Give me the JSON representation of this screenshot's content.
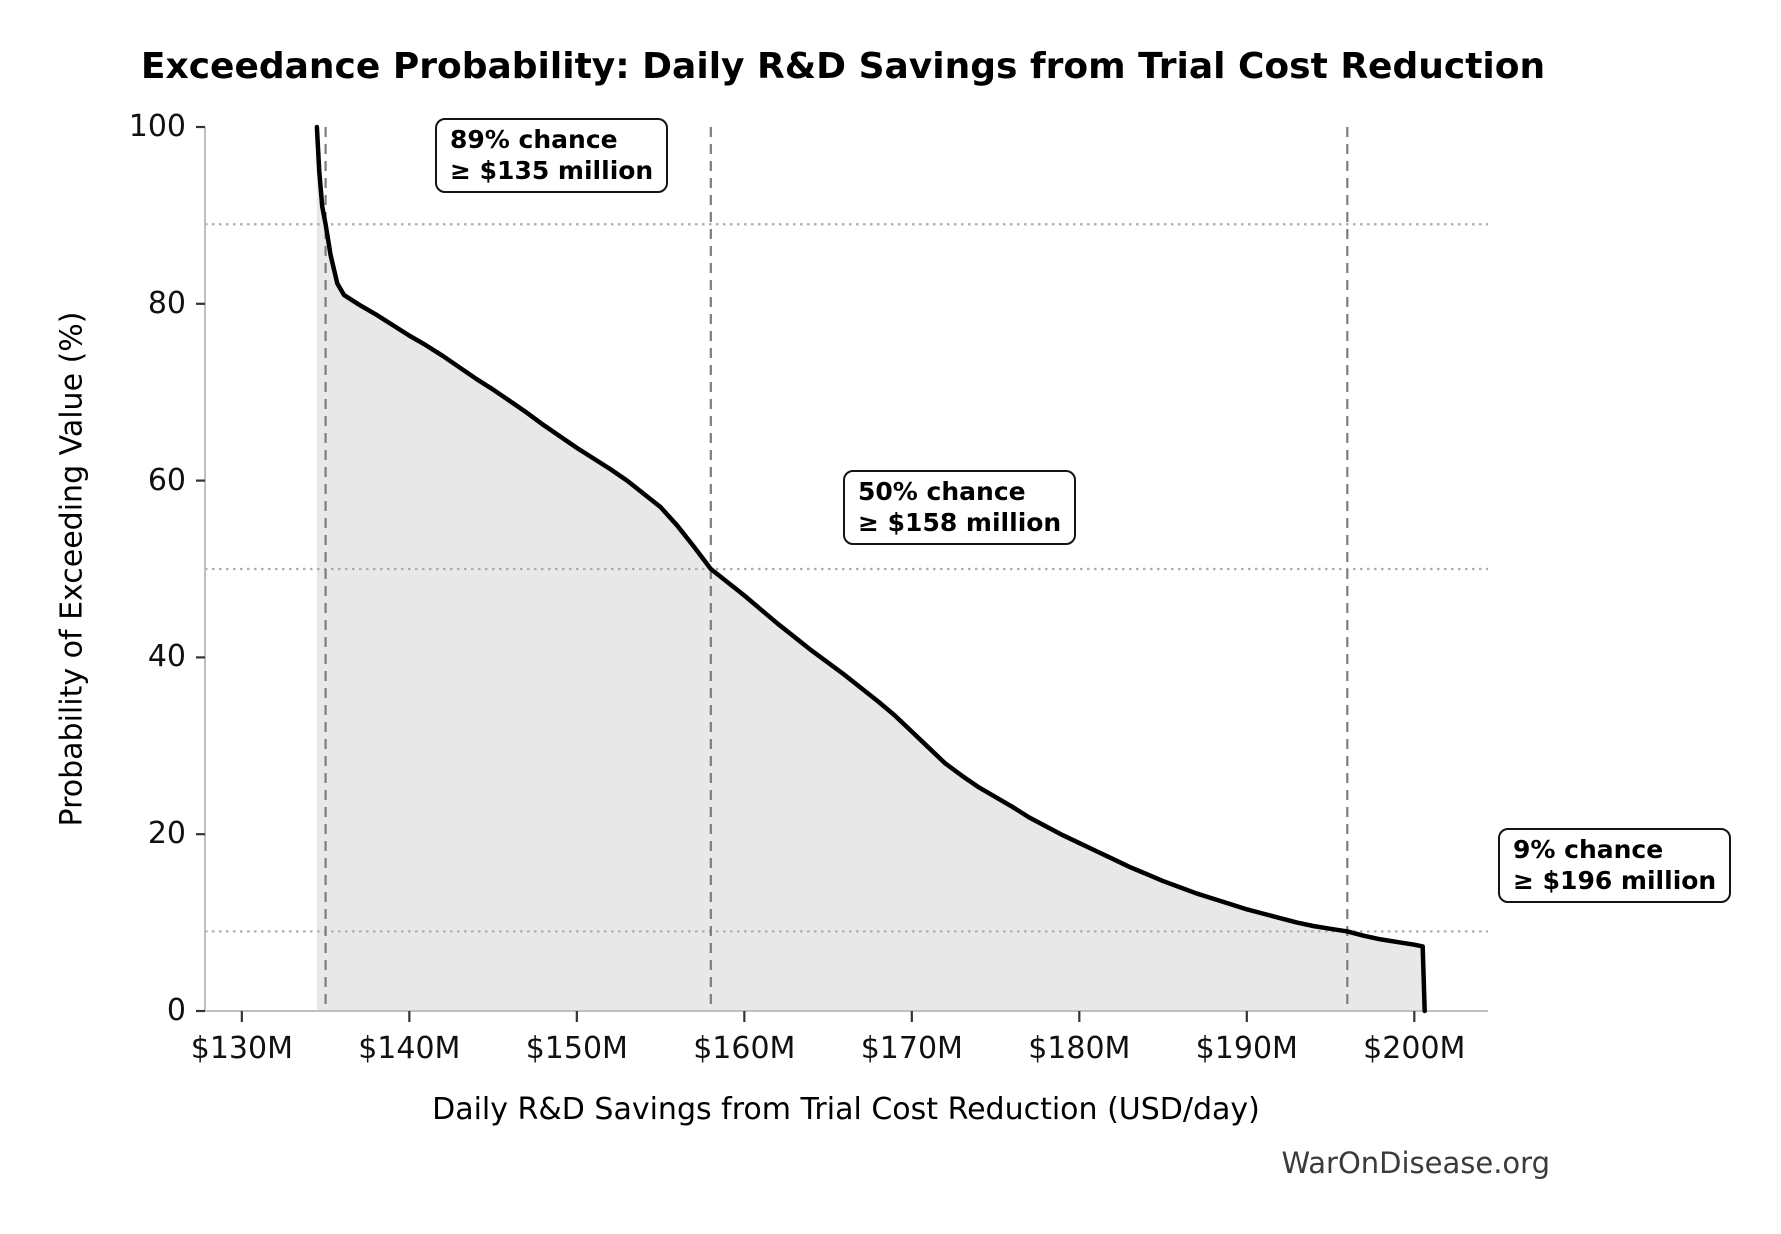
{
  "chart_data": {
    "type": "line",
    "subtype": "exceedance-probability-curve",
    "title": "Exceedance Probability: Daily R&D Savings from Trial Cost Reduction",
    "xlabel": "Daily R&D Savings from Trial Cost Reduction (USD/day)",
    "ylabel": "Probability of Exceeding Value (%)",
    "xlim": [
      127.8,
      204.4
    ],
    "ylim": [
      0,
      100
    ],
    "grid": "off",
    "legend": "none",
    "x_ticks": [
      {
        "value": 130,
        "label": "$130M"
      },
      {
        "value": 140,
        "label": "$140M"
      },
      {
        "value": 150,
        "label": "$150M"
      },
      {
        "value": 160,
        "label": "$160M"
      },
      {
        "value": 170,
        "label": "$170M"
      },
      {
        "value": 180,
        "label": "$180M"
      },
      {
        "value": 190,
        "label": "$190M"
      },
      {
        "value": 200,
        "label": "$200M"
      }
    ],
    "y_ticks": [
      {
        "value": 0,
        "label": "0"
      },
      {
        "value": 20,
        "label": "20"
      },
      {
        "value": 40,
        "label": "40"
      },
      {
        "value": 60,
        "label": "60"
      },
      {
        "value": 80,
        "label": "80"
      },
      {
        "value": 100,
        "label": "100"
      }
    ],
    "series": [
      {
        "name": "exceedance_probability",
        "x_unit": "USD millions per day",
        "y_unit": "percent",
        "points": [
          [
            134.48,
            100
          ],
          [
            134.62,
            95
          ],
          [
            134.8,
            91
          ],
          [
            135.0,
            89
          ],
          [
            135.3,
            85.5
          ],
          [
            135.7,
            82.3
          ],
          [
            136.1,
            81.0
          ],
          [
            137,
            79.9
          ],
          [
            138,
            78.8
          ],
          [
            139,
            77.6
          ],
          [
            140,
            76.4
          ],
          [
            141,
            75.3
          ],
          [
            142,
            74.1
          ],
          [
            143,
            72.8
          ],
          [
            144,
            71.5
          ],
          [
            145,
            70.3
          ],
          [
            146,
            69.0
          ],
          [
            147,
            67.7
          ],
          [
            148,
            66.3
          ],
          [
            149,
            65.0
          ],
          [
            150,
            63.7
          ],
          [
            151,
            62.5
          ],
          [
            152,
            61.3
          ],
          [
            153,
            60.0
          ],
          [
            154,
            58.5
          ],
          [
            155,
            57.0
          ],
          [
            156,
            54.9
          ],
          [
            157,
            52.5
          ],
          [
            158,
            50.0
          ],
          [
            159,
            48.5
          ],
          [
            160,
            47.0
          ],
          [
            161,
            45.4
          ],
          [
            162,
            43.8
          ],
          [
            163,
            42.3
          ],
          [
            164,
            40.8
          ],
          [
            165,
            39.4
          ],
          [
            166,
            38.0
          ],
          [
            167,
            36.5
          ],
          [
            168,
            35.0
          ],
          [
            169,
            33.4
          ],
          [
            170,
            31.6
          ],
          [
            171,
            29.8
          ],
          [
            172,
            28.0
          ],
          [
            173,
            26.6
          ],
          [
            174,
            25.3
          ],
          [
            175,
            24.2
          ],
          [
            176,
            23.1
          ],
          [
            177,
            21.9
          ],
          [
            178,
            20.9
          ],
          [
            179,
            19.9
          ],
          [
            180,
            19.0
          ],
          [
            181,
            18.1
          ],
          [
            182,
            17.2
          ],
          [
            183,
            16.3
          ],
          [
            184,
            15.5
          ],
          [
            185,
            14.7
          ],
          [
            186,
            14.0
          ],
          [
            187,
            13.3
          ],
          [
            188,
            12.7
          ],
          [
            189,
            12.1
          ],
          [
            190,
            11.5
          ],
          [
            191,
            11.0
          ],
          [
            192,
            10.5
          ],
          [
            193,
            10.0
          ],
          [
            194,
            9.6
          ],
          [
            195,
            9.3
          ],
          [
            196,
            9.0
          ],
          [
            197,
            8.5
          ],
          [
            198,
            8.1
          ],
          [
            199,
            7.8
          ],
          [
            200,
            7.5
          ],
          [
            200.5,
            7.3
          ],
          [
            200.62,
            0
          ]
        ]
      }
    ],
    "fill_under_curve": true,
    "reference_lines": {
      "vertical_dashed_values": [
        135,
        158,
        196
      ],
      "horizontal_dotted_values": [
        89,
        50,
        9
      ]
    },
    "annotations": [
      {
        "line1": "89% chance",
        "line2": "≥ $135 million"
      },
      {
        "line1": "50% chance",
        "line2": "≥ $158 million"
      },
      {
        "line1": "9% chance",
        "line2": "≥ $196 million"
      }
    ],
    "colors": {
      "curve": "#000000",
      "fill": "#e8e8e8",
      "dashed_line": "#7d7d7d",
      "dotted_line": "#ababab",
      "spine": "#bfbfbf",
      "tick_mark": "#333333",
      "tick_label": "#111111",
      "watermark": "#3b3b3b"
    }
  },
  "watermark": "WarOnDisease.org"
}
